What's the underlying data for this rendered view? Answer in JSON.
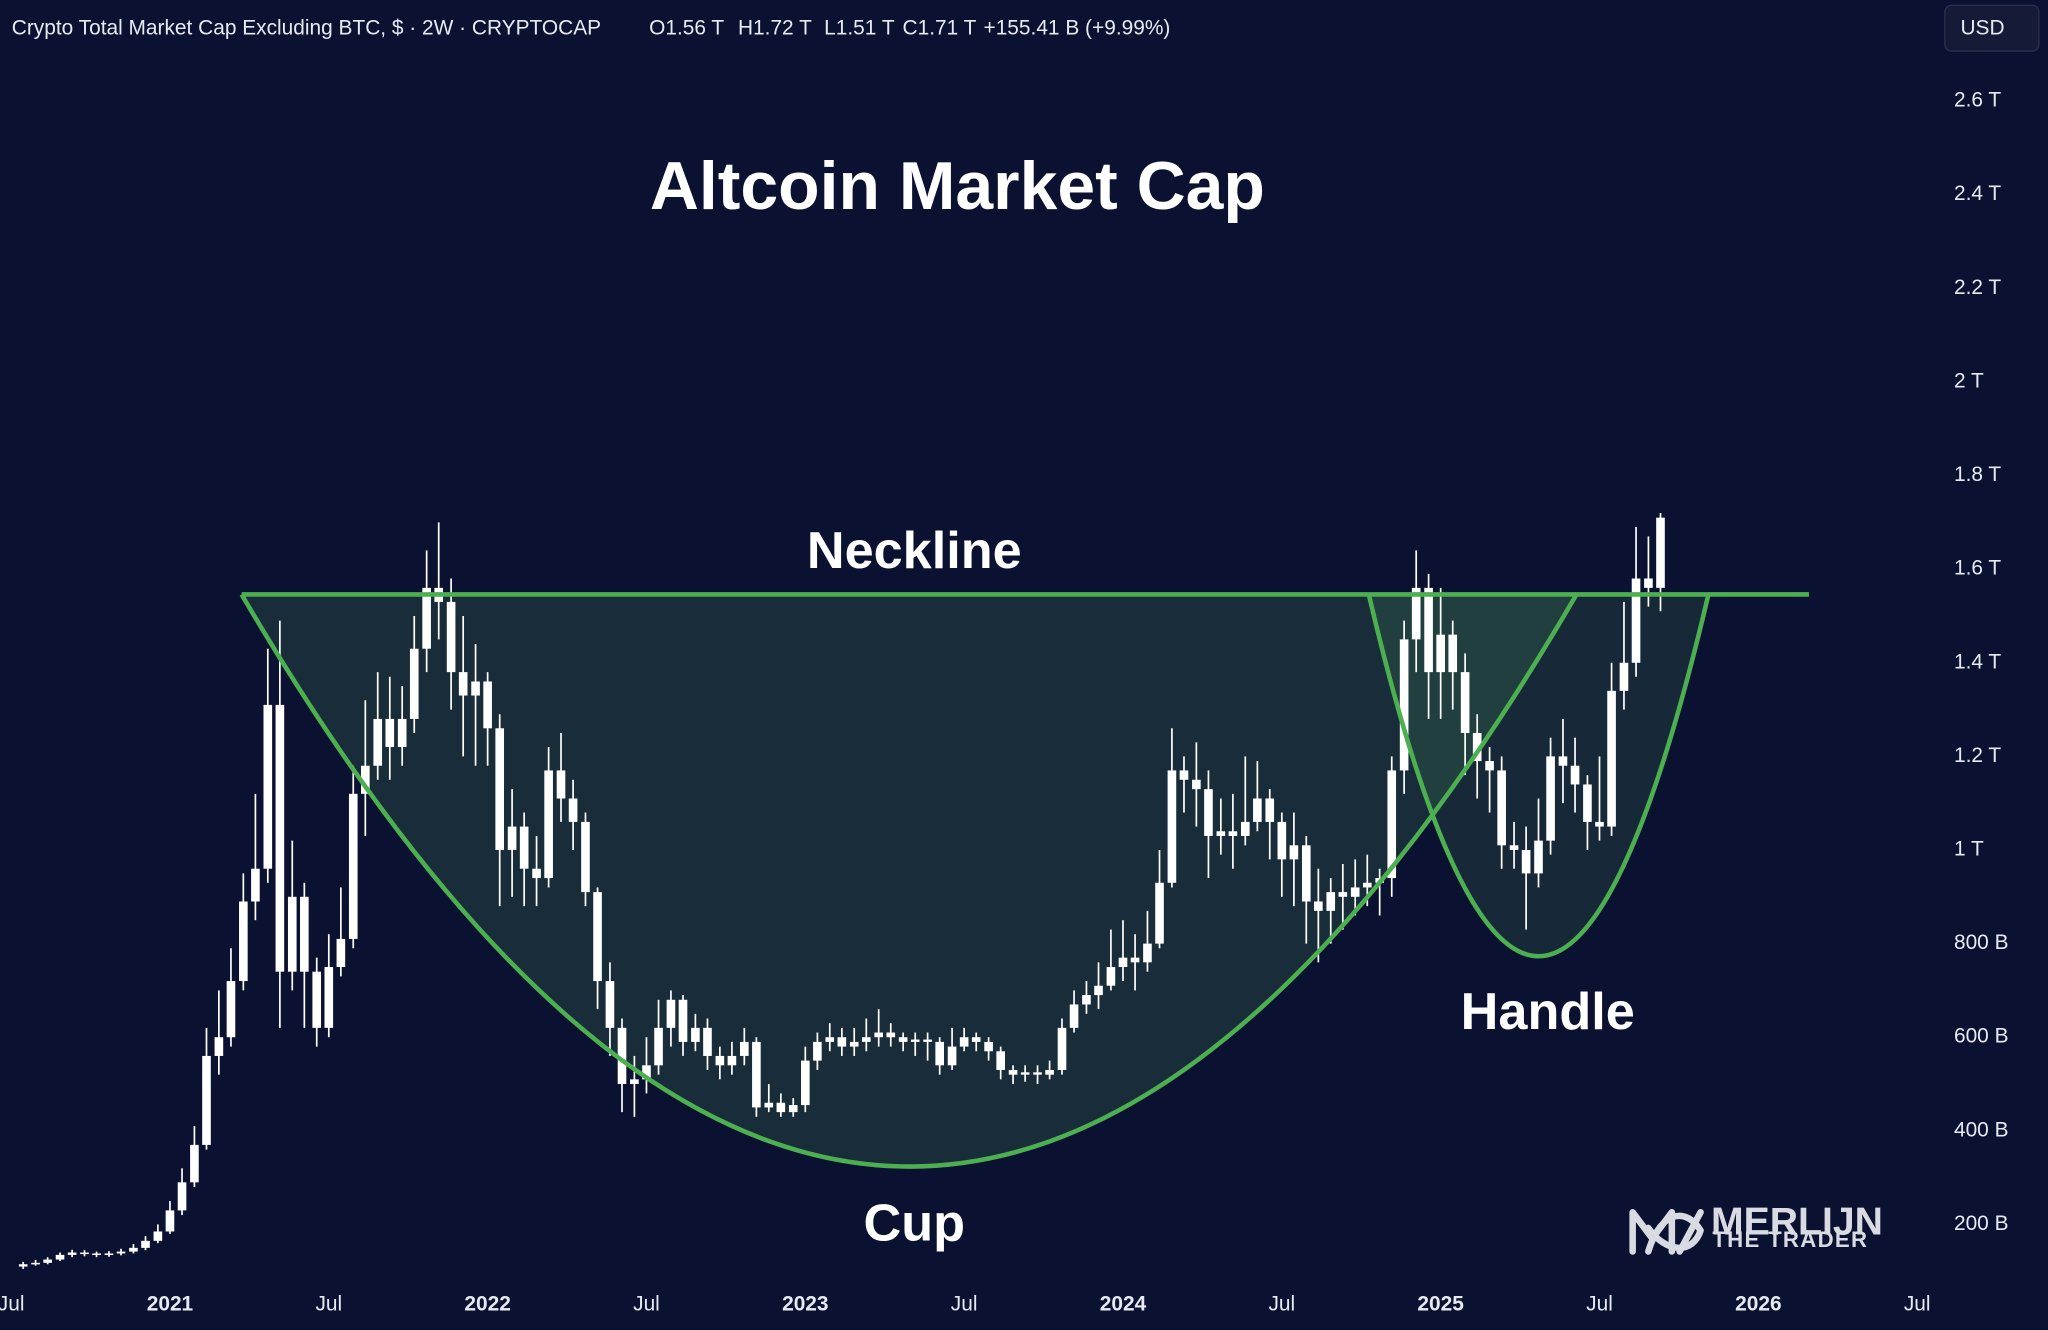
{
  "chart_data": {
    "type": "candlestick",
    "title": "Altcoin Market Cap",
    "subtitle": "Crypto Total Market Cap Excluding BTC, $ · 2W · CRYPTOCAP",
    "ohlc_labels": [
      "O1.56 T",
      "H1.72 T",
      "L1.51 T",
      "C1.71 T"
    ],
    "change": "+155.41 B (+9.99%)",
    "currency": "USD",
    "annotations": [
      "Neckline",
      "Cup",
      "Handle"
    ],
    "watermark": [
      "MERLIJN",
      "THE TRADER"
    ],
    "color": "#ffffff",
    "xlim": [
      2020.465,
      2026.55
    ],
    "xticks": [
      {
        "value": 2020.5,
        "label": "Jul"
      },
      2021,
      {
        "value": 2021.5,
        "label": "Jul"
      },
      2022,
      {
        "value": 2022.5,
        "label": "Jul"
      },
      2023,
      {
        "value": 2023.5,
        "label": "Jul"
      },
      2024,
      {
        "value": 2024.5,
        "label": "Jul"
      },
      2025,
      {
        "value": 2025.5,
        "label": "Jul"
      },
      2026,
      {
        "value": 2026.5,
        "label": "Jul"
      }
    ],
    "ylim": [
      0,
      2690
    ],
    "yticks": [
      {
        "value": 200,
        "label": "200 B"
      },
      {
        "value": 400,
        "label": "400 B"
      },
      {
        "value": 600,
        "label": "600 B"
      },
      {
        "value": 800,
        "label": "800 B"
      },
      {
        "value": 1000,
        "label": "1 T"
      },
      {
        "value": 1200,
        "label": "1.2 T"
      },
      {
        "value": 1400,
        "label": "1.4 T"
      },
      {
        "value": 1600,
        "label": "1.6 T"
      },
      {
        "value": 1800,
        "label": "1.8 T"
      },
      {
        "value": 2000,
        "label": "2 T"
      },
      {
        "value": 2200,
        "label": "2.2 T"
      },
      {
        "value": 2400,
        "label": "2.4 T"
      },
      {
        "value": 2600,
        "label": "2.6 T"
      }
    ],
    "x": [
      2020.538,
      2020.577,
      2020.615,
      2020.654,
      2020.692,
      2020.731,
      2020.769,
      2020.808,
      2020.846,
      2020.885,
      2020.923,
      2020.962,
      2021.0,
      2021.038,
      2021.077,
      2021.115,
      2021.154,
      2021.192,
      2021.231,
      2021.269,
      2021.308,
      2021.346,
      2021.385,
      2021.423,
      2021.462,
      2021.5,
      2021.538,
      2021.577,
      2021.615,
      2021.654,
      2021.692,
      2021.731,
      2021.769,
      2021.808,
      2021.846,
      2021.885,
      2021.923,
      2021.962,
      2022.0,
      2022.038,
      2022.077,
      2022.115,
      2022.154,
      2022.192,
      2022.231,
      2022.269,
      2022.308,
      2022.346,
      2022.385,
      2022.423,
      2022.462,
      2022.5,
      2022.538,
      2022.577,
      2022.615,
      2022.654,
      2022.692,
      2022.731,
      2022.769,
      2022.808,
      2022.846,
      2022.885,
      2022.923,
      2022.962,
      2023.0,
      2023.038,
      2023.077,
      2023.115,
      2023.154,
      2023.192,
      2023.231,
      2023.269,
      2023.308,
      2023.346,
      2023.385,
      2023.423,
      2023.462,
      2023.5,
      2023.538,
      2023.577,
      2023.615,
      2023.654,
      2023.692,
      2023.731,
      2023.769,
      2023.808,
      2023.846,
      2023.885,
      2023.923,
      2023.962,
      2024.0,
      2024.038,
      2024.077,
      2024.115,
      2024.154,
      2024.192,
      2024.231,
      2024.269,
      2024.308,
      2024.346,
      2024.385,
      2024.423,
      2024.462,
      2024.5,
      2024.538,
      2024.577,
      2024.615,
      2024.654,
      2024.692,
      2024.731,
      2024.769,
      2024.808,
      2024.846,
      2024.885,
      2024.923,
      2024.962,
      2025.0,
      2025.038,
      2025.077,
      2025.115,
      2025.154,
      2025.192,
      2025.231,
      2025.269,
      2025.308,
      2025.346,
      2025.385,
      2025.423,
      2025.462,
      2025.5,
      2025.538,
      2025.577,
      2025.615,
      2025.654,
      2025.692
    ],
    "open": [
      110,
      115,
      118,
      125,
      135,
      140,
      138,
      135,
      138,
      142,
      150,
      165,
      185,
      230,
      290,
      370,
      560,
      600,
      720,
      890,
      960,
      1310,
      740,
      900,
      740,
      620,
      750,
      810,
      1120,
      1180,
      1280,
      1220,
      1280,
      1430,
      1560,
      1530,
      1380,
      1330,
      1360,
      1260,
      1000,
      1050,
      960,
      940,
      1170,
      1110,
      1060,
      910,
      720,
      620,
      500,
      510,
      540,
      620,
      680,
      590,
      620,
      560,
      540,
      560,
      590,
      450,
      460,
      440,
      455,
      550,
      590,
      600,
      580,
      590,
      600,
      610,
      600,
      590,
      595,
      590,
      540,
      580,
      600,
      590,
      570,
      530,
      520,
      525,
      520,
      530,
      620,
      670,
      690,
      710,
      750,
      770,
      760,
      800,
      930,
      1170,
      1150,
      1130,
      1030,
      1040,
      1030,
      1060,
      1110,
      1060,
      980,
      1010,
      890,
      870,
      910,
      900,
      920,
      930,
      940,
      1170,
      1450,
      1560,
      1380,
      1460,
      1380,
      1250,
      1190,
      1170,
      1010,
      1000,
      950,
      1020,
      1200,
      1180,
      1140,
      1060,
      1050,
      1340,
      1400,
      1580,
      1560
    ],
    "high": [
      120,
      124,
      130,
      140,
      146,
      145,
      142,
      143,
      148,
      158,
      175,
      200,
      250,
      320,
      410,
      620,
      700,
      790,
      950,
      1120,
      1430,
      1490,
      1020,
      930,
      770,
      820,
      920,
      1180,
      1320,
      1380,
      1370,
      1350,
      1500,
      1640,
      1700,
      1580,
      1500,
      1440,
      1380,
      1290,
      1130,
      1080,
      1030,
      1220,
      1250,
      1150,
      1080,
      920,
      760,
      640,
      560,
      600,
      680,
      700,
      690,
      650,
      640,
      580,
      590,
      620,
      600,
      500,
      480,
      470,
      580,
      610,
      630,
      620,
      620,
      640,
      660,
      630,
      610,
      610,
      610,
      600,
      620,
      620,
      610,
      600,
      580,
      540,
      540,
      540,
      550,
      640,
      700,
      720,
      760,
      830,
      850,
      820,
      870,
      1000,
      1260,
      1200,
      1230,
      1170,
      1110,
      1120,
      1200,
      1190,
      1130,
      1080,
      1080,
      1030,
      960,
      940,
      970,
      980,
      990,
      960,
      1200,
      1490,
      1640,
      1590,
      1560,
      1490,
      1420,
      1290,
      1220,
      1200,
      1060,
      1050,
      1110,
      1240,
      1280,
      1240,
      1160,
      1200,
      1400,
      1530,
      1690,
      1670,
      1720
    ],
    "low": [
      105,
      112,
      115,
      122,
      130,
      132,
      130,
      131,
      134,
      138,
      145,
      160,
      180,
      220,
      280,
      360,
      520,
      580,
      700,
      850,
      930,
      620,
      700,
      620,
      580,
      600,
      730,
      790,
      1030,
      1150,
      1150,
      1180,
      1250,
      1380,
      1450,
      1300,
      1200,
      1180,
      1180,
      880,
      900,
      880,
      880,
      920,
      1060,
      1000,
      880,
      660,
      560,
      440,
      430,
      480,
      520,
      580,
      560,
      570,
      530,
      510,
      520,
      540,
      430,
      440,
      430,
      430,
      440,
      530,
      570,
      560,
      560,
      570,
      580,
      580,
      570,
      560,
      550,
      520,
      530,
      570,
      570,
      550,
      510,
      500,
      505,
      500,
      510,
      520,
      610,
      650,
      660,
      700,
      720,
      700,
      740,
      790,
      920,
      1080,
      1050,
      940,
      990,
      960,
      1010,
      1040,
      980,
      900,
      880,
      800,
      760,
      800,
      830,
      860,
      880,
      860,
      900,
      1120,
      1380,
      1280,
      1280,
      1300,
      1160,
      1110,
      1080,
      960,
      960,
      830,
      920,
      990,
      1100,
      1080,
      1000,
      1020,
      1030,
      1300,
      1370,
      1520,
      1510
    ],
    "close": [
      115,
      118,
      125,
      135,
      140,
      138,
      135,
      138,
      142,
      150,
      165,
      185,
      230,
      290,
      370,
      560,
      600,
      720,
      890,
      960,
      1310,
      740,
      900,
      740,
      620,
      750,
      810,
      1120,
      1180,
      1280,
      1220,
      1280,
      1430,
      1560,
      1530,
      1380,
      1330,
      1360,
      1260,
      1000,
      1050,
      960,
      940,
      1170,
      1110,
      1060,
      910,
      720,
      620,
      500,
      510,
      540,
      620,
      680,
      590,
      620,
      560,
      540,
      560,
      590,
      450,
      460,
      440,
      455,
      550,
      590,
      600,
      580,
      590,
      600,
      610,
      600,
      590,
      595,
      590,
      540,
      580,
      600,
      590,
      570,
      530,
      520,
      525,
      520,
      530,
      620,
      670,
      690,
      710,
      750,
      770,
      760,
      800,
      930,
      1170,
      1150,
      1130,
      1030,
      1040,
      1030,
      1060,
      1110,
      1060,
      980,
      1010,
      890,
      870,
      910,
      900,
      920,
      930,
      940,
      1170,
      1450,
      1560,
      1380,
      1460,
      1380,
      1250,
      1190,
      1170,
      1010,
      1000,
      950,
      1020,
      1200,
      1180,
      1140,
      1060,
      1050,
      1340,
      1400,
      1580,
      1560,
      1710
    ]
  }
}
